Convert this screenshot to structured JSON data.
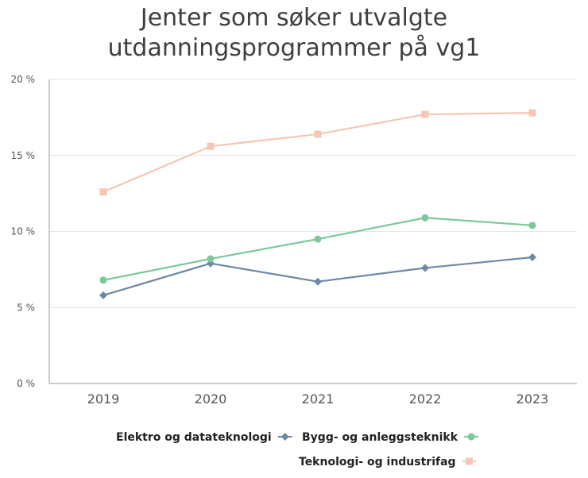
{
  "chart_data": {
    "type": "line",
    "title_lines": [
      "Jenter som søker utvalgte",
      "utdanningsprogrammer på vg1"
    ],
    "xlabel": "",
    "ylabel": "",
    "x": [
      "2019",
      "2020",
      "2021",
      "2022",
      "2023"
    ],
    "ylim": [
      0,
      20
    ],
    "yticks": [
      {
        "value": 0,
        "label": "0 %"
      },
      {
        "value": 5,
        "label": "5 %"
      },
      {
        "value": 10,
        "label": "10 %"
      },
      {
        "value": 15,
        "label": "15 %"
      },
      {
        "value": 20,
        "label": "20 %"
      }
    ],
    "grid": true,
    "legend_position": "bottom",
    "series": [
      {
        "name": "Elektro og datateknologi",
        "color": "#6f87a3",
        "marker": "diamond",
        "values": [
          5.8,
          7.9,
          6.7,
          7.6,
          8.3
        ]
      },
      {
        "name": "Bygg- og anleggsteknikk",
        "color": "#7cc89a",
        "marker": "circle",
        "values": [
          6.8,
          8.2,
          9.5,
          10.9,
          10.4
        ]
      },
      {
        "name": "Teknologi- og industrifag",
        "color": "#f5c6b6",
        "marker": "square",
        "values": [
          12.6,
          15.6,
          16.4,
          17.7,
          17.8
        ]
      }
    ]
  }
}
